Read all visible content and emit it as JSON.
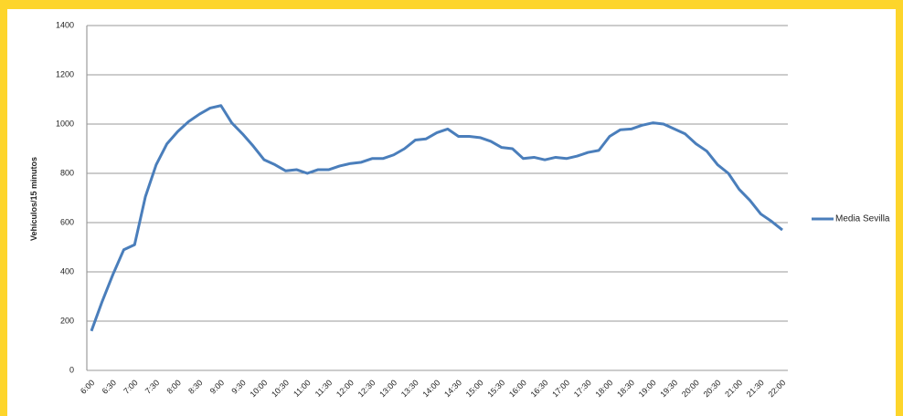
{
  "chart_data": {
    "type": "line",
    "y_label": "Vehículos/15 minutos",
    "categories": [
      "6:00",
      null,
      "6:30",
      null,
      "7:00",
      null,
      "7:30",
      null,
      "8:00",
      null,
      "8:30",
      null,
      "9:00",
      null,
      "9:30",
      null,
      "10:00",
      null,
      "10:30",
      null,
      "11:00",
      null,
      "11:30",
      null,
      "12:00",
      null,
      "12:30",
      null,
      "13:00",
      null,
      "13:30",
      null,
      "14:00",
      null,
      "14:30",
      null,
      "15:00",
      null,
      "15:30",
      null,
      "16:00",
      null,
      "16:30",
      null,
      "17:00",
      null,
      "17:30",
      null,
      "18:00",
      null,
      "18:30",
      null,
      "19:00",
      null,
      "19:30",
      null,
      "20:00",
      null,
      "20:30",
      null,
      "21:00",
      null,
      "21:30",
      null,
      "22:00"
    ],
    "series": [
      {
        "name": "Media Sevilla",
        "color": "#4a7ebb",
        "values": [
          160,
          280,
          390,
          490,
          510,
          705,
          835,
          920,
          970,
          1010,
          1040,
          1065,
          1075,
          1005,
          960,
          910,
          855,
          835,
          810,
          815,
          800,
          815,
          815,
          830,
          840,
          845,
          860,
          860,
          875,
          900,
          935,
          940,
          965,
          980,
          950,
          950,
          945,
          930,
          905,
          900,
          860,
          865,
          855,
          865,
          860,
          870,
          885,
          893,
          950,
          977,
          980,
          995,
          1005,
          1000,
          980,
          960,
          920,
          890,
          835,
          800,
          735,
          690,
          635,
          605,
          570
        ]
      }
    ],
    "ylim": [
      0,
      1400
    ],
    "yticks": [
      0,
      200,
      400,
      600,
      800,
      1000,
      1200,
      1400
    ],
    "grid": true,
    "legend": "right"
  }
}
